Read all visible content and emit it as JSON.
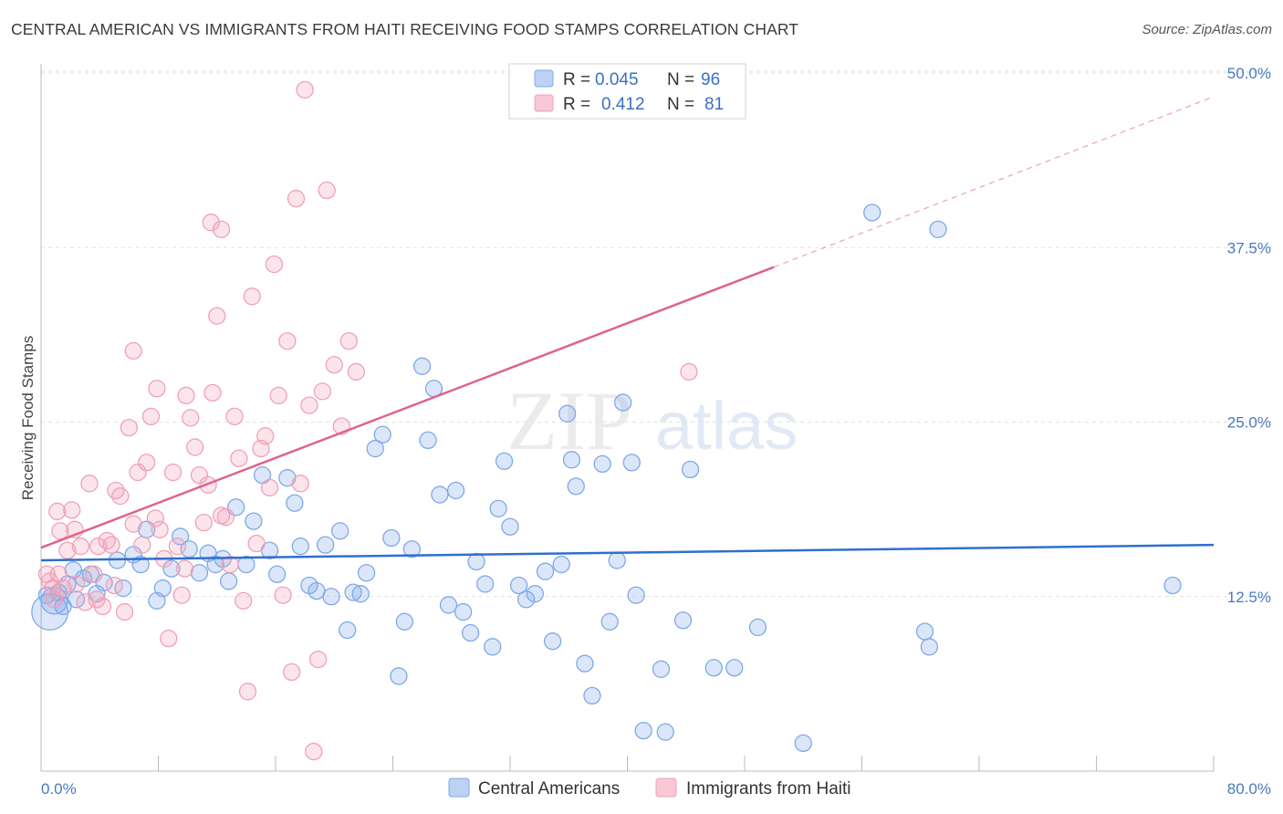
{
  "title": "CENTRAL AMERICAN VS IMMIGRANTS FROM HAITI RECEIVING FOOD STAMPS CORRELATION CHART",
  "source": "Source: ZipAtlas.com",
  "watermark": {
    "zip": "ZIP",
    "atlas": "atlas"
  },
  "legend_top": [
    {
      "r_label": "R =",
      "r_value": "0.045",
      "n_label": "N =",
      "n_value": "96",
      "color": "#7fa8e8"
    },
    {
      "r_label": "R =",
      "r_value": "0.412",
      "n_label": "N =",
      "n_value": "81",
      "color": "#f0a0b8"
    }
  ],
  "chart_data": {
    "type": "scatter",
    "title": "CENTRAL AMERICAN VS IMMIGRANTS FROM HAITI RECEIVING FOOD STAMPS CORRELATION CHART",
    "xlabel": "",
    "ylabel": "Receiving Food Stamps",
    "xlim": [
      0,
      80
    ],
    "ylim": [
      0,
      50
    ],
    "x_tick_labels": [
      "0.0%",
      "80.0%"
    ],
    "y_tick_labels": [
      "12.5%",
      "25.0%",
      "37.5%",
      "50.0%"
    ],
    "y_ticks": [
      12.5,
      25.0,
      37.5,
      50.0
    ],
    "grid": true,
    "legend_position": "top-center",
    "series": [
      {
        "name": "Central Americans",
        "color": "#7fa8e8",
        "line_color": "#2f6fcf",
        "trend": {
          "x0": 0,
          "y0": 15.1,
          "x1": 80,
          "y1": 16.2
        },
        "points": [
          [
            0.6,
            11.4
          ],
          [
            0.9,
            12.2
          ],
          [
            1.2,
            12.8
          ],
          [
            1.5,
            11.8
          ],
          [
            2.2,
            14.4
          ],
          [
            2.4,
            12.3
          ],
          [
            2.9,
            13.8
          ],
          [
            3.4,
            14.1
          ],
          [
            3.8,
            12.7
          ],
          [
            4.3,
            13.5
          ],
          [
            5.2,
            15.1
          ],
          [
            5.6,
            13.1
          ],
          [
            6.3,
            15.5
          ],
          [
            6.8,
            14.8
          ],
          [
            7.2,
            17.3
          ],
          [
            7.9,
            12.2
          ],
          [
            8.3,
            13.1
          ],
          [
            8.9,
            14.5
          ],
          [
            9.5,
            16.8
          ],
          [
            10.1,
            15.9
          ],
          [
            10.8,
            14.2
          ],
          [
            11.4,
            15.6
          ],
          [
            11.9,
            14.8
          ],
          [
            12.4,
            15.2
          ],
          [
            12.8,
            13.6
          ],
          [
            13.3,
            18.9
          ],
          [
            14.0,
            14.8
          ],
          [
            14.5,
            17.9
          ],
          [
            15.1,
            21.2
          ],
          [
            15.6,
            15.8
          ],
          [
            16.1,
            14.1
          ],
          [
            16.8,
            21.0
          ],
          [
            17.3,
            19.2
          ],
          [
            17.7,
            16.1
          ],
          [
            18.3,
            13.3
          ],
          [
            18.8,
            12.9
          ],
          [
            19.4,
            16.2
          ],
          [
            19.8,
            12.5
          ],
          [
            20.4,
            17.2
          ],
          [
            20.9,
            10.1
          ],
          [
            21.3,
            12.8
          ],
          [
            21.8,
            12.7
          ],
          [
            22.2,
            14.2
          ],
          [
            22.8,
            23.1
          ],
          [
            23.3,
            24.1
          ],
          [
            23.9,
            16.7
          ],
          [
            24.4,
            6.8
          ],
          [
            24.8,
            10.7
          ],
          [
            25.3,
            15.9
          ],
          [
            26.0,
            29.0
          ],
          [
            26.4,
            23.7
          ],
          [
            26.8,
            27.4
          ],
          [
            27.2,
            19.8
          ],
          [
            27.8,
            11.9
          ],
          [
            28.3,
            20.1
          ],
          [
            28.8,
            11.4
          ],
          [
            29.3,
            9.9
          ],
          [
            29.7,
            15.0
          ],
          [
            30.3,
            13.4
          ],
          [
            30.8,
            8.9
          ],
          [
            31.2,
            18.8
          ],
          [
            31.6,
            22.2
          ],
          [
            32.0,
            17.5
          ],
          [
            32.6,
            13.3
          ],
          [
            33.1,
            12.3
          ],
          [
            33.7,
            12.7
          ],
          [
            34.4,
            14.3
          ],
          [
            34.9,
            9.3
          ],
          [
            35.5,
            14.8
          ],
          [
            35.9,
            25.6
          ],
          [
            36.2,
            22.3
          ],
          [
            36.5,
            20.4
          ],
          [
            37.1,
            7.7
          ],
          [
            37.6,
            5.4
          ],
          [
            38.3,
            22.0
          ],
          [
            38.8,
            10.7
          ],
          [
            39.3,
            15.1
          ],
          [
            39.7,
            26.4
          ],
          [
            40.3,
            22.1
          ],
          [
            40.6,
            12.6
          ],
          [
            41.1,
            2.9
          ],
          [
            42.3,
            7.3
          ],
          [
            42.6,
            2.8
          ],
          [
            43.8,
            10.8
          ],
          [
            44.3,
            21.6
          ],
          [
            45.9,
            7.4
          ],
          [
            47.3,
            7.4
          ],
          [
            48.9,
            10.3
          ],
          [
            52.0,
            2.0
          ],
          [
            56.7,
            40.0
          ],
          [
            60.3,
            10.0
          ],
          [
            60.6,
            8.9
          ],
          [
            61.2,
            38.8
          ],
          [
            77.2,
            13.3
          ],
          [
            0.4,
            12.6
          ],
          [
            1.8,
            13.4
          ]
        ],
        "sizes": {
          "0": 2.2,
          "1": 1.6
        }
      },
      {
        "name": "Immigrants from Haiti",
        "color": "#f0a0b8",
        "line_color": "#e0628a",
        "trend": {
          "x0": 0,
          "y0": 16.0,
          "x1": 50,
          "y1": 36.1
        },
        "trend_ext": {
          "x0": 50,
          "y0": 36.1,
          "x1": 80,
          "y1": 48.3
        },
        "points": [
          [
            0.4,
            14.1
          ],
          [
            0.6,
            13.6
          ],
          [
            0.9,
            12.3
          ],
          [
            1.1,
            18.6
          ],
          [
            1.3,
            17.2
          ],
          [
            1.5,
            13.1
          ],
          [
            1.8,
            15.8
          ],
          [
            2.1,
            18.7
          ],
          [
            2.4,
            13.4
          ],
          [
            2.7,
            16.1
          ],
          [
            3.0,
            12.1
          ],
          [
            3.3,
            20.6
          ],
          [
            3.6,
            14.1
          ],
          [
            3.9,
            16.1
          ],
          [
            4.2,
            11.8
          ],
          [
            4.5,
            16.5
          ],
          [
            4.8,
            16.2
          ],
          [
            5.1,
            20.1
          ],
          [
            5.4,
            19.7
          ],
          [
            5.7,
            11.4
          ],
          [
            6.0,
            24.6
          ],
          [
            6.3,
            17.7
          ],
          [
            6.6,
            21.4
          ],
          [
            6.9,
            16.2
          ],
          [
            7.2,
            22.1
          ],
          [
            7.5,
            25.4
          ],
          [
            7.8,
            18.1
          ],
          [
            8.1,
            17.3
          ],
          [
            8.4,
            15.2
          ],
          [
            8.7,
            9.5
          ],
          [
            9.0,
            21.4
          ],
          [
            9.3,
            16.1
          ],
          [
            9.6,
            12.6
          ],
          [
            9.9,
            26.9
          ],
          [
            10.2,
            25.3
          ],
          [
            10.5,
            23.2
          ],
          [
            10.8,
            21.2
          ],
          [
            11.1,
            17.8
          ],
          [
            11.4,
            20.5
          ],
          [
            11.7,
            27.1
          ],
          [
            12.0,
            32.6
          ],
          [
            12.3,
            38.8
          ],
          [
            12.6,
            18.2
          ],
          [
            12.9,
            14.8
          ],
          [
            13.2,
            25.4
          ],
          [
            13.5,
            22.4
          ],
          [
            13.8,
            12.2
          ],
          [
            14.1,
            5.7
          ],
          [
            14.4,
            34.0
          ],
          [
            14.7,
            16.3
          ],
          [
            15.0,
            23.1
          ],
          [
            15.3,
            24.0
          ],
          [
            15.6,
            20.3
          ],
          [
            15.9,
            36.3
          ],
          [
            16.2,
            26.9
          ],
          [
            16.5,
            12.6
          ],
          [
            16.8,
            30.8
          ],
          [
            17.1,
            7.1
          ],
          [
            17.4,
            41.0
          ],
          [
            17.7,
            20.6
          ],
          [
            18.0,
            48.8
          ],
          [
            18.3,
            26.2
          ],
          [
            18.6,
            1.4
          ],
          [
            18.9,
            8.0
          ],
          [
            19.2,
            27.2
          ],
          [
            19.5,
            41.6
          ],
          [
            20.0,
            29.1
          ],
          [
            20.5,
            24.7
          ],
          [
            21.0,
            30.8
          ],
          [
            21.5,
            28.6
          ],
          [
            7.9,
            27.4
          ],
          [
            6.3,
            30.1
          ],
          [
            11.6,
            39.3
          ],
          [
            2.3,
            17.3
          ],
          [
            3.8,
            12.3
          ],
          [
            5.0,
            13.3
          ],
          [
            1.2,
            14.1
          ],
          [
            0.8,
            13.1
          ],
          [
            12.3,
            18.3
          ],
          [
            9.8,
            14.5
          ],
          [
            44.2,
            28.6
          ]
        ]
      }
    ]
  }
}
